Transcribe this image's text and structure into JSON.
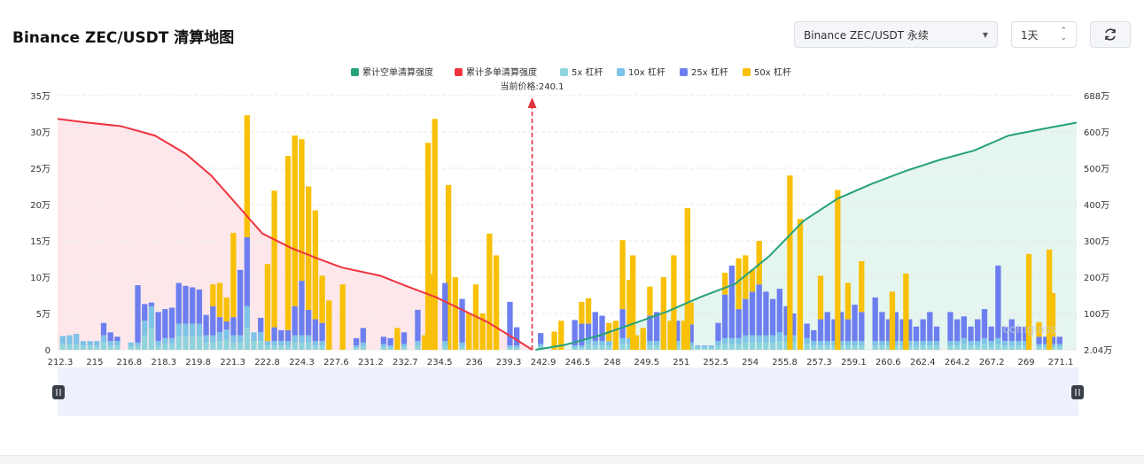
{
  "header": {
    "title": "Binance ZEC/USDT 清算地图",
    "exchange_select": "Binance ZEC/USDT 永续",
    "interval_select": "1天",
    "refresh_icon": "refresh-icon"
  },
  "colors": {
    "short_cum": "#26a17b",
    "long_cum": "#f0333f",
    "lev5": "#8fd4dc",
    "lev10": "#7ec3e8",
    "lev25": "#6d7ff0",
    "lev50": "#f8c107",
    "long_fill": "#fde7ea",
    "short_fill": "#e5f5f0",
    "slider_bg": "#eef1fd"
  },
  "watermark": "coinglass",
  "chart_data": {
    "type": "bar",
    "legend": [
      "累计空单清算强度",
      "累计多单清算强度",
      "5x 杠杆",
      "10x 杠杆",
      "25x 杠杆",
      "50x 杠杆"
    ],
    "legend_position": "top-center",
    "current_price_label": "当前价格:240.1",
    "current_price": 240.1,
    "x_range": [
      212.3,
      272.0
    ],
    "x_tick_labels": [
      "212.3",
      "215",
      "216.8",
      "218.3",
      "219.8",
      "221.3",
      "222.8",
      "224.3",
      "227.6",
      "231.2",
      "232.7",
      "234.5",
      "236",
      "239.3",
      "242.9",
      "246.5",
      "248",
      "249.5",
      "251",
      "252.5",
      "254",
      "255.8",
      "257.3",
      "259.1",
      "260.6",
      "262.4",
      "264.2",
      "267.2",
      "269",
      "271.1"
    ],
    "y_left_ticks": [
      "0",
      "5万",
      "10万",
      "15万",
      "20万",
      "25万",
      "30万",
      "35万"
    ],
    "y_left_range": [
      0,
      350000
    ],
    "y_right_ticks": [
      "2.04万",
      "100万",
      "200万",
      "300万",
      "400万",
      "500万",
      "600万",
      "688万"
    ],
    "y_right_range": [
      20400,
      6880000
    ],
    "grid": "horizontal dashed",
    "bars": [
      [
        212.6,
        8000,
        11000,
        0,
        0
      ],
      [
        213.0,
        8000,
        12000,
        0,
        0
      ],
      [
        213.4,
        8000,
        14000,
        0,
        0
      ],
      [
        213.8,
        6000,
        6000,
        0,
        0
      ],
      [
        214.2,
        6000,
        6000,
        0,
        0
      ],
      [
        214.6,
        6000,
        6000,
        0,
        0
      ],
      [
        215.0,
        10000,
        10000,
        17000,
        0
      ],
      [
        215.4,
        6000,
        6000,
        12000,
        0
      ],
      [
        215.8,
        6000,
        6000,
        6000,
        0
      ],
      [
        216.2,
        0,
        0,
        0,
        0
      ],
      [
        216.6,
        5000,
        5000,
        0,
        0
      ],
      [
        217.0,
        5000,
        5000,
        79000,
        0
      ],
      [
        217.4,
        20000,
        20000,
        23000,
        0
      ],
      [
        217.8,
        30000,
        30000,
        5000,
        0
      ],
      [
        218.2,
        6000,
        6000,
        40000,
        0
      ],
      [
        218.6,
        8000,
        8000,
        40000,
        0
      ],
      [
        219.0,
        8000,
        8000,
        42000,
        0
      ],
      [
        219.4,
        18000,
        18000,
        56000,
        0
      ],
      [
        219.8,
        18000,
        18000,
        52000,
        0
      ],
      [
        220.2,
        18000,
        18000,
        50000,
        0
      ],
      [
        220.6,
        18000,
        18000,
        47000,
        0
      ],
      [
        221.0,
        10000,
        10000,
        28000,
        0
      ],
      [
        221.4,
        10000,
        10000,
        40000,
        30000
      ],
      [
        221.8,
        12000,
        12000,
        21000,
        47000
      ],
      [
        222.2,
        14000,
        14000,
        11000,
        33000
      ],
      [
        222.6,
        10000,
        10000,
        25000,
        116000
      ],
      [
        223.0,
        10000,
        10000,
        90000,
        0
      ],
      [
        223.4,
        30000,
        30000,
        95000,
        168000
      ],
      [
        223.8,
        12000,
        12000,
        0,
        0
      ],
      [
        224.2,
        12000,
        12000,
        20000,
        0
      ],
      [
        224.6,
        6000,
        6000,
        0,
        106000
      ],
      [
        225.0,
        6000,
        6000,
        19000,
        188000
      ],
      [
        225.4,
        6000,
        6000,
        15000,
        0
      ],
      [
        225.8,
        6000,
        6000,
        15000,
        240000
      ],
      [
        226.2,
        10000,
        10000,
        40000,
        235000
      ],
      [
        226.6,
        10000,
        10000,
        75000,
        195000
      ],
      [
        227.0,
        10000,
        10000,
        35000,
        170000
      ],
      [
        227.4,
        6000,
        6000,
        30000,
        150000
      ],
      [
        227.8,
        6000,
        6000,
        25000,
        65000
      ],
      [
        228.2,
        0,
        0,
        0,
        68000
      ],
      [
        228.6,
        0,
        0,
        0,
        0
      ],
      [
        229.0,
        0,
        0,
        0,
        90000
      ],
      [
        229.4,
        0,
        0,
        0,
        0
      ],
      [
        229.8,
        3000,
        3000,
        10000,
        0
      ],
      [
        230.2,
        5000,
        5000,
        20000,
        0
      ],
      [
        230.6,
        0,
        0,
        0,
        0
      ],
      [
        231.0,
        0,
        0,
        0,
        0
      ],
      [
        231.4,
        4000,
        4000,
        10000,
        0
      ],
      [
        231.8,
        3000,
        3000,
        10000,
        0
      ],
      [
        232.2,
        0,
        0,
        0,
        30000
      ],
      [
        232.6,
        4000,
        4000,
        16000,
        0
      ],
      [
        233.0,
        0,
        0,
        0,
        0
      ],
      [
        233.4,
        6000,
        6000,
        43000,
        0
      ],
      [
        233.8,
        0,
        0,
        0,
        20000
      ],
      [
        234.2,
        0,
        0,
        0,
        104000
      ],
      [
        234.6,
        0,
        0,
        0,
        0
      ],
      [
        235.0,
        0,
        0,
        0,
        0
      ],
      [
        235.4,
        0,
        0,
        0,
        0
      ],
      [
        235.8,
        0,
        0,
        0,
        0
      ],
      [
        236.2,
        0,
        0,
        0,
        0
      ],
      [
        236.6,
        0,
        0,
        0,
        0
      ],
      [
        237.0,
        0,
        0,
        0,
        0
      ],
      [
        237.4,
        0,
        0,
        0,
        0
      ],
      [
        237.8,
        0,
        0,
        0,
        0
      ],
      [
        238.2,
        0,
        0,
        0,
        0
      ],
      [
        238.6,
        0,
        0,
        0,
        0
      ],
      [
        239.0,
        0,
        0,
        0,
        0
      ],
      [
        239.4,
        0,
        0,
        0,
        0
      ]
    ],
    "short_cum": [
      [
        240.3,
        20400
      ],
      [
        242,
        150000
      ],
      [
        244,
        400000
      ],
      [
        246,
        720000
      ],
      [
        248,
        1050000
      ],
      [
        250,
        1450000
      ],
      [
        252,
        1800000
      ],
      [
        254,
        2550000
      ],
      [
        256,
        3500000
      ],
      [
        258,
        4100000
      ],
      [
        260,
        4500000
      ],
      [
        262,
        4850000
      ],
      [
        264,
        5150000
      ],
      [
        266,
        5400000
      ],
      [
        268,
        5800000
      ],
      [
        270,
        5980000
      ],
      [
        272,
        6150000
      ]
    ],
    "long_cum": [
      [
        212.3,
        318000
      ],
      [
        214,
        313000
      ],
      [
        216,
        308000
      ],
      [
        218,
        295000
      ],
      [
        219.8,
        270000
      ],
      [
        221.3,
        240000
      ],
      [
        222.8,
        200000
      ],
      [
        224.3,
        160000
      ],
      [
        226,
        140000
      ],
      [
        227.6,
        125000
      ],
      [
        229,
        113000
      ],
      [
        231.2,
        102000
      ],
      [
        232.7,
        88000
      ],
      [
        234.5,
        72000
      ],
      [
        236,
        55000
      ],
      [
        237.5,
        38000
      ],
      [
        239.3,
        12000
      ],
      [
        240.1,
        0
      ]
    ]
  }
}
